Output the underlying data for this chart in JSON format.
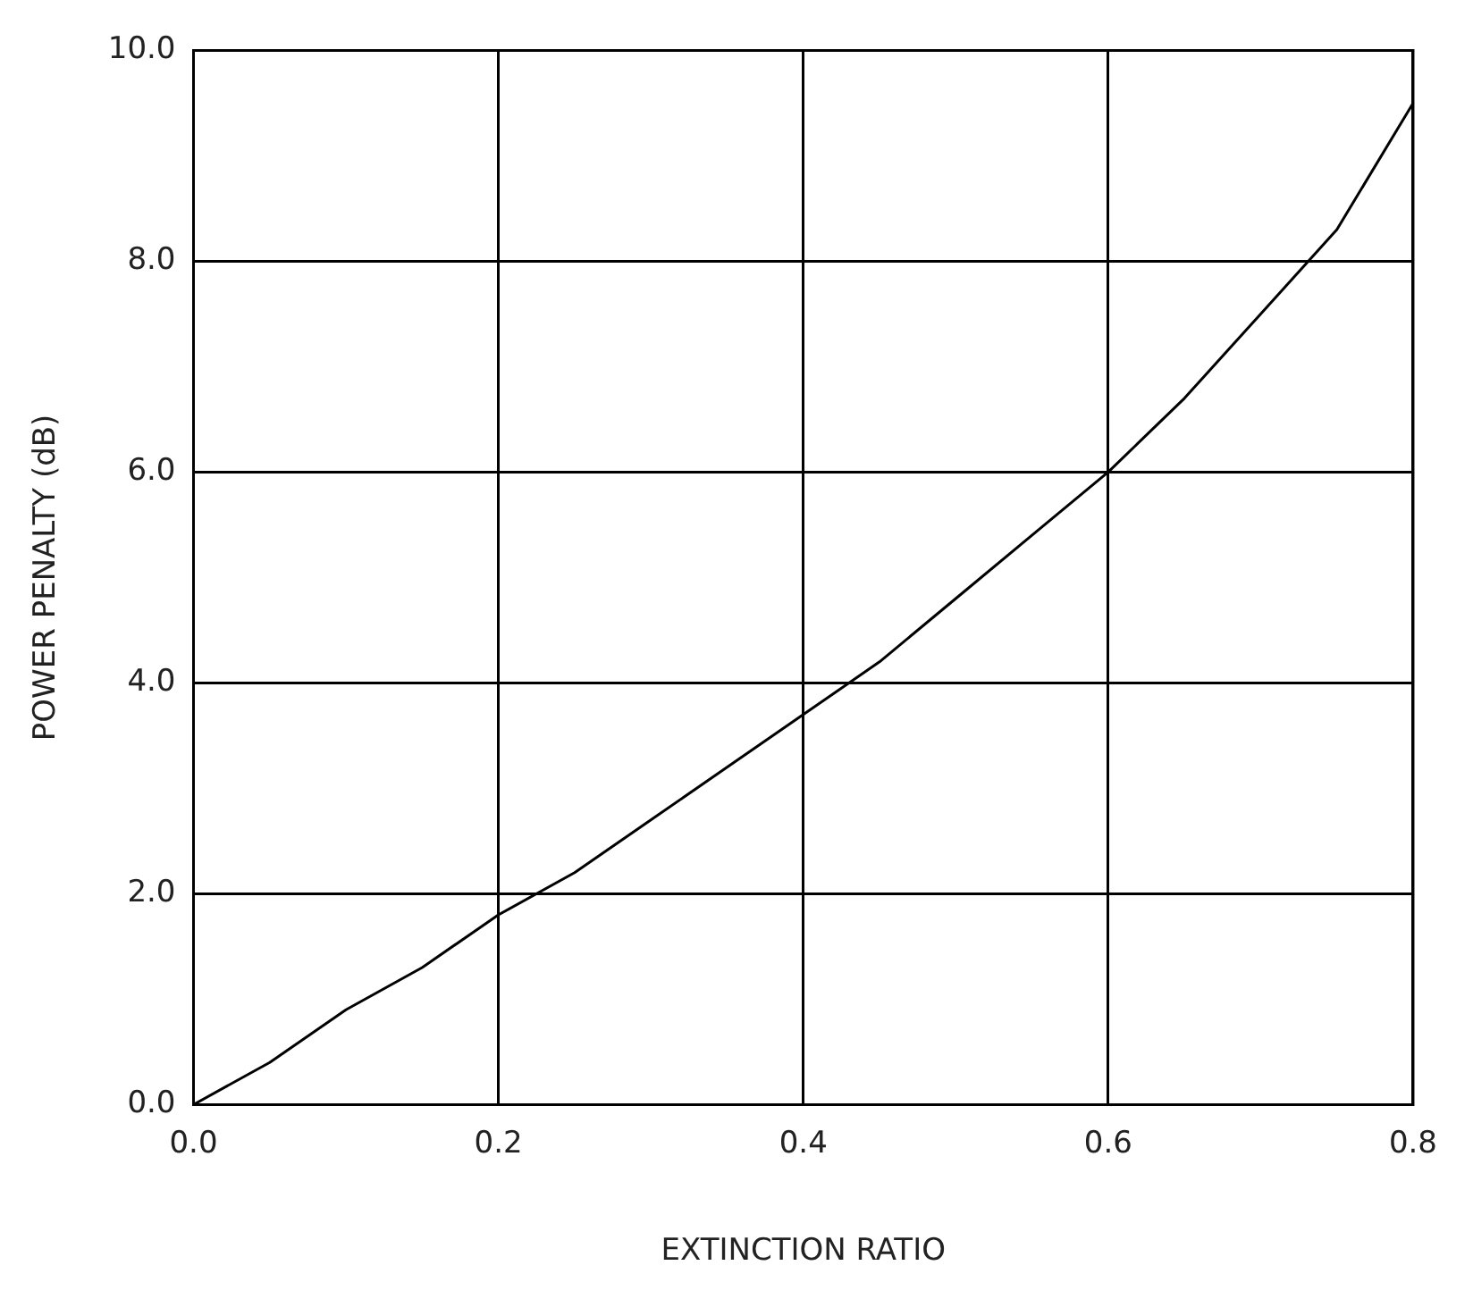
{
  "chart_data": {
    "type": "line",
    "xlabel": "EXTINCTION RATIO",
    "ylabel": "POWER PENALTY (dB)",
    "x": [
      0,
      0.05,
      0.1,
      0.15,
      0.2,
      0.25,
      0.3,
      0.35,
      0.4,
      0.45,
      0.5,
      0.55,
      0.6,
      0.65,
      0.7,
      0.75,
      0.8
    ],
    "series": [
      {
        "color": "#000000",
        "values": [
          0,
          0.4,
          0.9,
          1.3,
          1.8,
          2.2,
          2.7,
          3.2,
          3.7,
          4.2,
          4.8,
          5.4,
          6.0,
          6.7,
          7.5,
          8.3,
          9.5
        ]
      }
    ],
    "xlim": [
      0,
      0.8
    ],
    "ylim": [
      0,
      10
    ],
    "xticks": [
      {
        "value": 0,
        "label": "0.0"
      },
      {
        "value": 0.2,
        "label": "0.2"
      },
      {
        "value": 0.4,
        "label": "0.4"
      },
      {
        "value": 0.6,
        "label": "0.6"
      },
      {
        "value": 0.8,
        "label": "0.8"
      }
    ],
    "yticks": [
      {
        "value": 0,
        "label": "0.0"
      },
      {
        "value": 2,
        "label": "2.0"
      },
      {
        "value": 4,
        "label": "4.0"
      },
      {
        "value": 6,
        "label": "6.0"
      },
      {
        "value": 8,
        "label": "8.0"
      },
      {
        "value": 10,
        "label": "10.0"
      }
    ],
    "grid": true,
    "marker": "none",
    "line_style": "solid",
    "legend": false
  }
}
